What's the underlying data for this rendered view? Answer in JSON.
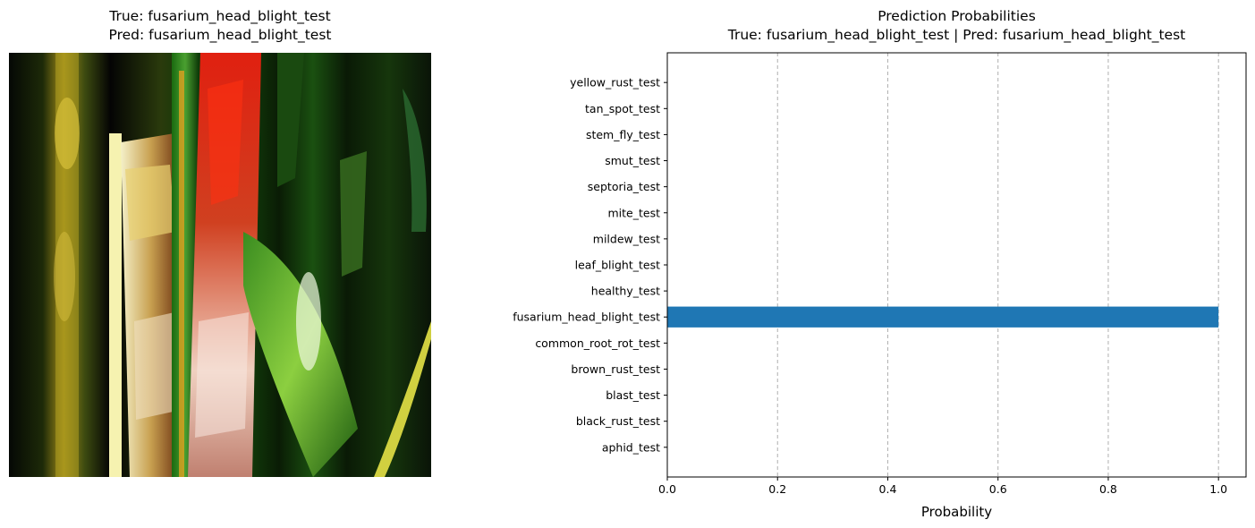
{
  "left_panel": {
    "title_line1": "True: fusarium_head_blight_test",
    "title_line2": "Pred: fusarium_head_blight_test"
  },
  "right_panel": {
    "title_line1": "Prediction Probabilities",
    "title_line2": "True: fusarium_head_blight_test | Pred: fusarium_head_blight_test"
  },
  "chart_data": {
    "type": "bar",
    "orientation": "horizontal",
    "title": "Prediction Probabilities",
    "subtitle": "True: fusarium_head_blight_test | Pred: fusarium_head_blight_test",
    "xlabel": "Probability",
    "ylabel": "",
    "xlim": [
      0,
      1.05
    ],
    "xticks": [
      0.0,
      0.2,
      0.4,
      0.6,
      0.8,
      1.0
    ],
    "xtick_labels": [
      "0.0",
      "0.2",
      "0.4",
      "0.6",
      "0.8",
      "1.0"
    ],
    "grid": "x-dashed",
    "bar_color": "#1f77b4",
    "categories": [
      "aphid_test",
      "black_rust_test",
      "blast_test",
      "brown_rust_test",
      "common_root_rot_test",
      "fusarium_head_blight_test",
      "healthy_test",
      "leaf_blight_test",
      "mildew_test",
      "mite_test",
      "septoria_test",
      "smut_test",
      "stem_fly_test",
      "tan_spot_test",
      "yellow_rust_test"
    ],
    "values": [
      0.0,
      0.0,
      0.0,
      0.0,
      0.0,
      1.0,
      0.0,
      0.0,
      0.0,
      0.0,
      0.0,
      0.0,
      0.0,
      0.0,
      0.0
    ]
  }
}
